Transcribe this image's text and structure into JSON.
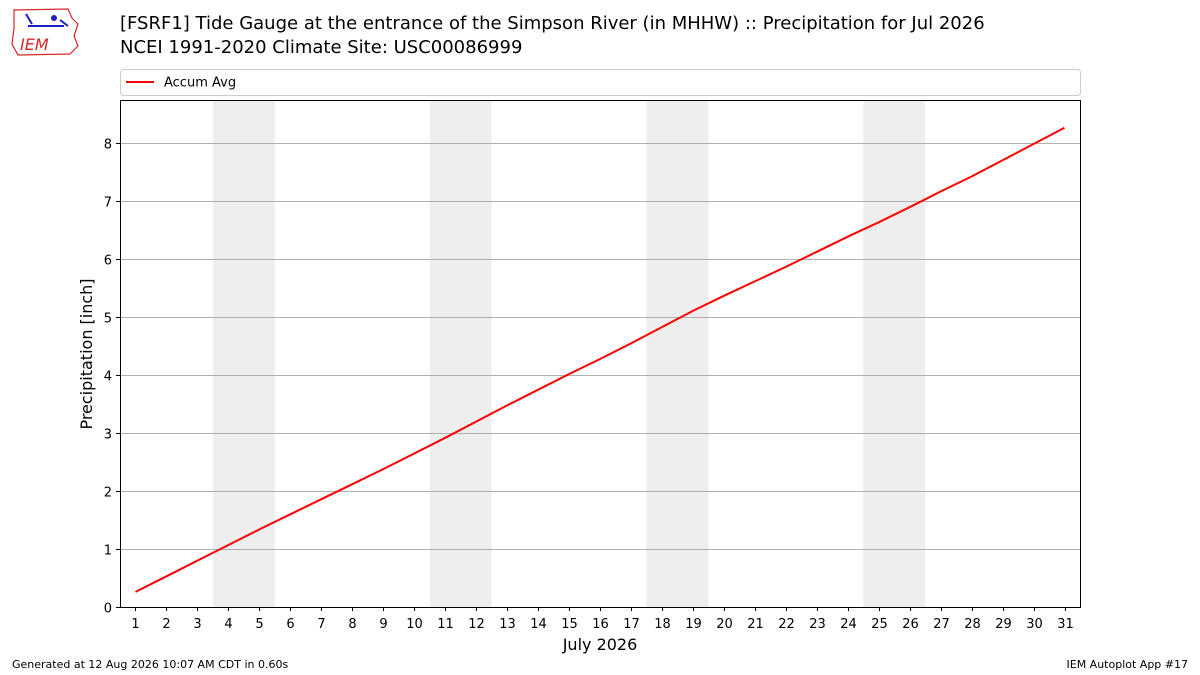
{
  "header": {
    "title_line1": "[FSRF1] Tide Gauge at the entrance of the Simpson River (in MHHW) :: Precipitation for Jul 2026",
    "title_line2": "NCEI 1991-2020 Climate Site: USC00086999",
    "logo_text": "IEM"
  },
  "footer": {
    "generated": "Generated at 12 Aug 2026 10:07 AM CDT in 0.60s",
    "app": "IEM Autoplot App #17"
  },
  "colors": {
    "line": "#ff0000",
    "weekend_band": "#eeeeee",
    "grid": "#b0b0b0",
    "logo": "#d62728",
    "logo_accent": "#1f1fbf"
  },
  "chart_data": {
    "type": "line",
    "title": "[FSRF1] Tide Gauge at the entrance of the Simpson River (in MHHW) :: Precipitation for Jul 2026",
    "subtitle": "NCEI 1991-2020 Climate Site: USC00086999",
    "xlabel": "July 2026",
    "ylabel": "Precipitation [inch]",
    "xlim": [
      0.5,
      31.5
    ],
    "ylim": [
      0,
      8.75
    ],
    "x_ticks": [
      1,
      2,
      3,
      4,
      5,
      6,
      7,
      8,
      9,
      10,
      11,
      12,
      13,
      14,
      15,
      16,
      17,
      18,
      19,
      20,
      21,
      22,
      23,
      24,
      25,
      26,
      27,
      28,
      29,
      30,
      31
    ],
    "y_ticks": [
      0,
      1,
      2,
      3,
      4,
      5,
      6,
      7,
      8
    ],
    "grid": "horizontal",
    "legend_placement": "top",
    "weekend_bands": [
      [
        3.5,
        5.5
      ],
      [
        10.5,
        12.5
      ],
      [
        17.5,
        19.5
      ],
      [
        24.5,
        26.5
      ]
    ],
    "series": [
      {
        "name": "Accum Avg",
        "x": [
          1,
          2,
          3,
          4,
          5,
          6,
          7,
          8,
          9,
          10,
          11,
          12,
          13,
          14,
          15,
          16,
          17,
          18,
          19,
          20,
          21,
          22,
          23,
          24,
          25,
          26,
          27,
          28,
          29,
          30,
          31
        ],
        "values": [
          0.26,
          0.53,
          0.8,
          1.07,
          1.34,
          1.6,
          1.86,
          2.12,
          2.38,
          2.65,
          2.92,
          3.2,
          3.48,
          3.75,
          4.02,
          4.28,
          4.55,
          4.83,
          5.11,
          5.37,
          5.62,
          5.87,
          6.13,
          6.39,
          6.64,
          6.9,
          7.17,
          7.43,
          7.71,
          7.99,
          8.27
        ]
      }
    ]
  }
}
